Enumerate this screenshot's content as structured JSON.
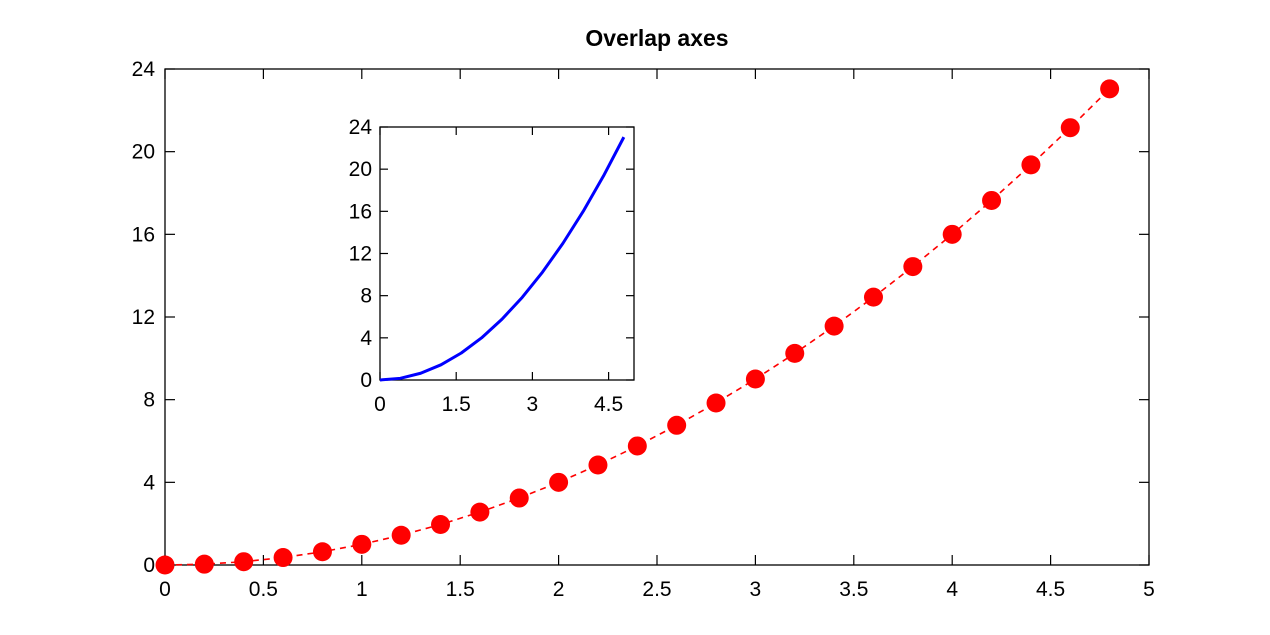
{
  "chart_data": [
    {
      "type": "scatter",
      "title": "Overlap axes",
      "xlabel": "",
      "ylabel": "",
      "xlim": [
        0,
        5
      ],
      "ylim": [
        0,
        24
      ],
      "xticks": [
        "0",
        "0.5",
        "1",
        "1.5",
        "2",
        "2.5",
        "3",
        "3.5",
        "4",
        "4.5",
        "5"
      ],
      "yticks": [
        "0",
        "4",
        "8",
        "12",
        "16",
        "20",
        "24"
      ],
      "grid": false,
      "series": [
        {
          "color": "#ff0000",
          "line_style": "dashed",
          "marker": "circle",
          "x": [
            0,
            0.2,
            0.4,
            0.6,
            0.8,
            1.0,
            1.2,
            1.4,
            1.6,
            1.8,
            2.0,
            2.2,
            2.4,
            2.6,
            2.8,
            3.0,
            3.2,
            3.4,
            3.6,
            3.8,
            4.0,
            4.2,
            4.4,
            4.6,
            4.8
          ],
          "y": [
            0,
            0.04,
            0.16,
            0.36,
            0.64,
            1.0,
            1.44,
            1.96,
            2.56,
            3.24,
            4.0,
            4.84,
            5.76,
            6.76,
            7.84,
            9.0,
            10.24,
            11.56,
            12.96,
            14.44,
            16.0,
            17.64,
            19.36,
            21.16,
            23.04
          ]
        }
      ]
    },
    {
      "type": "line",
      "title": "",
      "xlabel": "",
      "ylabel": "",
      "xlim": [
        0,
        5
      ],
      "ylim": [
        0,
        24
      ],
      "xticks": [
        "0",
        "1.5",
        "3",
        "4.5"
      ],
      "yticks": [
        "0",
        "4",
        "8",
        "12",
        "16",
        "20",
        "24"
      ],
      "grid": false,
      "placement": "inset, upper-left of main axes",
      "series": [
        {
          "color": "#0000ff",
          "line_style": "solid",
          "x": [
            0,
            0.4,
            0.8,
            1.2,
            1.6,
            2.0,
            2.4,
            2.8,
            3.2,
            3.6,
            4.0,
            4.4,
            4.8
          ],
          "y": [
            0,
            0.16,
            0.64,
            1.44,
            2.56,
            4.0,
            5.76,
            7.84,
            10.24,
            12.96,
            16.0,
            19.36,
            23.04
          ]
        }
      ]
    }
  ]
}
